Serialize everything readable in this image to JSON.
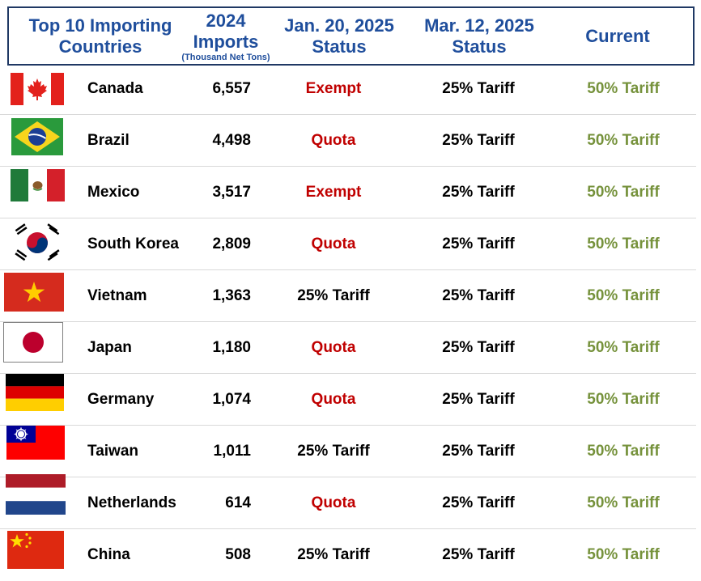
{
  "header": {
    "col_country": [
      "Top 10 Importing",
      "Countries"
    ],
    "col_imports": [
      "2024",
      "Imports"
    ],
    "col_imports_sub": "(Thousand Net Tons)",
    "col_jan": [
      "Jan. 20, 2025",
      "Status"
    ],
    "col_mar": [
      "Mar. 12, 2025",
      "Status"
    ],
    "col_current": "Current"
  },
  "colors": {
    "header_text": "#1f4e9c",
    "header_border": "#1f3864",
    "status_red": "#c00000",
    "current_green": "#76923c"
  },
  "rows": [
    {
      "flag": "canada-flag-icon",
      "country": "Canada",
      "imports": "6,557",
      "jan": "Exempt",
      "jan_style": "red",
      "mar": "25% Tariff",
      "current": "50% Tariff"
    },
    {
      "flag": "brazil-flag-icon",
      "country": "Brazil",
      "imports": "4,498",
      "jan": "Quota",
      "jan_style": "red",
      "mar": "25% Tariff",
      "current": "50% Tariff"
    },
    {
      "flag": "mexico-flag-icon",
      "country": "Mexico",
      "imports": "3,517",
      "jan": "Exempt",
      "jan_style": "red",
      "mar": "25% Tariff",
      "current": "50% Tariff"
    },
    {
      "flag": "south-korea-flag-icon",
      "country": "South Korea",
      "imports": "2,809",
      "jan": "Quota",
      "jan_style": "red",
      "mar": "25% Tariff",
      "current": "50% Tariff"
    },
    {
      "flag": "vietnam-flag-icon",
      "country": "Vietnam",
      "imports": "1,363",
      "jan": "25% Tariff",
      "jan_style": "black",
      "mar": "25% Tariff",
      "current": "50% Tariff"
    },
    {
      "flag": "japan-flag-icon",
      "country": "Japan",
      "imports": "1,180",
      "jan": "Quota",
      "jan_style": "red",
      "mar": "25% Tariff",
      "current": "50% Tariff"
    },
    {
      "flag": "germany-flag-icon",
      "country": "Germany",
      "imports": "1,074",
      "jan": "Quota",
      "jan_style": "red",
      "mar": "25% Tariff",
      "current": "50% Tariff"
    },
    {
      "flag": "taiwan-flag-icon",
      "country": "Taiwan",
      "imports": "1,011",
      "jan": "25% Tariff",
      "jan_style": "black",
      "mar": "25% Tariff",
      "current": "50% Tariff"
    },
    {
      "flag": "netherlands-flag-icon",
      "country": "Netherlands",
      "imports": "614",
      "jan": "Quota",
      "jan_style": "red",
      "mar": "25% Tariff",
      "current": "50% Tariff"
    },
    {
      "flag": "china-flag-icon",
      "country": "China",
      "imports": "508",
      "jan": "25% Tariff",
      "jan_style": "black",
      "mar": "25% Tariff",
      "current": "50% Tariff"
    }
  ]
}
